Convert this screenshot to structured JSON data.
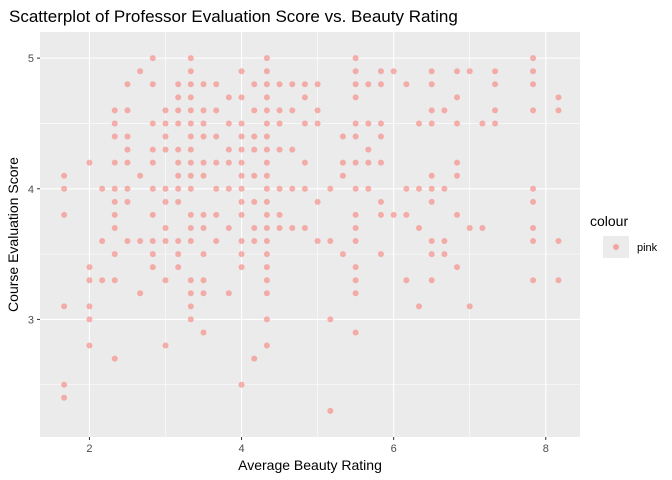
{
  "chart_data": {
    "type": "scatter",
    "title": "Scatterplot of Professor Evaluation Score vs. Beauty Rating",
    "xlabel": "Average Beauty Rating",
    "ylabel": "Course Evaluation Score",
    "xlim": [
      1.35,
      8.45
    ],
    "ylim": [
      2.1,
      5.2
    ],
    "x_ticks": [
      2,
      4,
      6,
      8
    ],
    "y_ticks": [
      3,
      4,
      5
    ],
    "grid": true,
    "legend": {
      "title": "colour",
      "label": "pink",
      "placement": "right"
    },
    "point_color": "#F8766D",
    "points": [
      [
        1.667,
        4.1
      ],
      [
        1.667,
        4.0
      ],
      [
        1.667,
        3.8
      ],
      [
        1.667,
        3.1
      ],
      [
        1.667,
        2.5
      ],
      [
        1.667,
        2.4
      ],
      [
        2.0,
        4.2
      ],
      [
        2.0,
        3.4
      ],
      [
        2.0,
        3.3
      ],
      [
        2.0,
        3.1
      ],
      [
        2.0,
        3.0
      ],
      [
        2.0,
        2.8
      ],
      [
        2.167,
        4.0
      ],
      [
        2.167,
        3.6
      ],
      [
        2.167,
        3.3
      ],
      [
        2.333,
        4.6
      ],
      [
        2.333,
        4.5
      ],
      [
        2.333,
        4.4
      ],
      [
        2.333,
        4.2
      ],
      [
        2.333,
        4.0
      ],
      [
        2.333,
        3.9
      ],
      [
        2.333,
        3.8
      ],
      [
        2.333,
        3.7
      ],
      [
        2.333,
        3.5
      ],
      [
        2.333,
        3.3
      ],
      [
        2.333,
        2.7
      ],
      [
        2.5,
        4.8
      ],
      [
        2.5,
        4.6
      ],
      [
        2.5,
        4.4
      ],
      [
        2.5,
        4.3
      ],
      [
        2.5,
        4.2
      ],
      [
        2.5,
        4.0
      ],
      [
        2.5,
        3.9
      ],
      [
        2.5,
        3.6
      ],
      [
        2.667,
        4.9
      ],
      [
        2.667,
        4.1
      ],
      [
        2.667,
        3.6
      ],
      [
        2.667,
        3.2
      ],
      [
        2.833,
        5.0
      ],
      [
        2.833,
        4.8
      ],
      [
        2.833,
        4.5
      ],
      [
        2.833,
        4.3
      ],
      [
        2.833,
        4.2
      ],
      [
        2.833,
        4.0
      ],
      [
        2.833,
        3.8
      ],
      [
        2.833,
        3.6
      ],
      [
        2.833,
        3.5
      ],
      [
        2.833,
        3.4
      ],
      [
        3.0,
        4.6
      ],
      [
        3.0,
        4.5
      ],
      [
        3.0,
        4.4
      ],
      [
        3.0,
        4.3
      ],
      [
        3.0,
        4.0
      ],
      [
        3.0,
        3.9
      ],
      [
        3.0,
        3.7
      ],
      [
        3.0,
        3.6
      ],
      [
        3.0,
        3.3
      ],
      [
        3.0,
        2.8
      ],
      [
        3.167,
        4.8
      ],
      [
        3.167,
        4.7
      ],
      [
        3.167,
        4.6
      ],
      [
        3.167,
        4.5
      ],
      [
        3.167,
        4.3
      ],
      [
        3.167,
        4.2
      ],
      [
        3.167,
        4.1
      ],
      [
        3.167,
        4.0
      ],
      [
        3.167,
        3.9
      ],
      [
        3.167,
        3.6
      ],
      [
        3.167,
        3.5
      ],
      [
        3.167,
        3.4
      ],
      [
        3.333,
        5.0
      ],
      [
        3.333,
        4.9
      ],
      [
        3.333,
        4.8
      ],
      [
        3.333,
        4.7
      ],
      [
        3.333,
        4.6
      ],
      [
        3.333,
        4.5
      ],
      [
        3.333,
        4.4
      ],
      [
        3.333,
        4.3
      ],
      [
        3.333,
        4.2
      ],
      [
        3.333,
        4.1
      ],
      [
        3.333,
        4.0
      ],
      [
        3.333,
        3.8
      ],
      [
        3.333,
        3.7
      ],
      [
        3.333,
        3.6
      ],
      [
        3.333,
        3.3
      ],
      [
        3.333,
        3.2
      ],
      [
        3.333,
        3.1
      ],
      [
        3.333,
        3.0
      ],
      [
        3.5,
        4.8
      ],
      [
        3.5,
        4.6
      ],
      [
        3.5,
        4.5
      ],
      [
        3.5,
        4.4
      ],
      [
        3.5,
        4.2
      ],
      [
        3.5,
        4.1
      ],
      [
        3.5,
        3.8
      ],
      [
        3.5,
        3.7
      ],
      [
        3.5,
        3.5
      ],
      [
        3.5,
        3.3
      ],
      [
        3.5,
        3.2
      ],
      [
        3.5,
        2.9
      ],
      [
        3.667,
        4.8
      ],
      [
        3.667,
        4.6
      ],
      [
        3.667,
        4.4
      ],
      [
        3.667,
        4.2
      ],
      [
        3.667,
        4.0
      ],
      [
        3.667,
        3.8
      ],
      [
        3.667,
        3.6
      ],
      [
        3.833,
        4.7
      ],
      [
        3.833,
        4.5
      ],
      [
        3.833,
        4.3
      ],
      [
        3.833,
        4.2
      ],
      [
        3.833,
        4.0
      ],
      [
        3.833,
        3.7
      ],
      [
        3.833,
        3.2
      ],
      [
        4.0,
        4.9
      ],
      [
        4.0,
        4.7
      ],
      [
        4.0,
        4.5
      ],
      [
        4.0,
        4.4
      ],
      [
        4.0,
        4.3
      ],
      [
        4.0,
        4.2
      ],
      [
        4.0,
        4.1
      ],
      [
        4.0,
        4.0
      ],
      [
        4.0,
        3.9
      ],
      [
        4.0,
        3.8
      ],
      [
        4.0,
        3.6
      ],
      [
        4.0,
        3.5
      ],
      [
        4.0,
        3.4
      ],
      [
        4.0,
        2.5
      ],
      [
        4.167,
        4.8
      ],
      [
        4.167,
        4.6
      ],
      [
        4.167,
        4.4
      ],
      [
        4.167,
        4.3
      ],
      [
        4.167,
        4.1
      ],
      [
        4.167,
        3.9
      ],
      [
        4.167,
        3.7
      ],
      [
        4.167,
        3.6
      ],
      [
        4.167,
        2.7
      ],
      [
        4.333,
        5.0
      ],
      [
        4.333,
        4.9
      ],
      [
        4.333,
        4.8
      ],
      [
        4.333,
        4.7
      ],
      [
        4.333,
        4.6
      ],
      [
        4.333,
        4.5
      ],
      [
        4.333,
        4.4
      ],
      [
        4.333,
        4.3
      ],
      [
        4.333,
        4.2
      ],
      [
        4.333,
        4.1
      ],
      [
        4.333,
        4.0
      ],
      [
        4.333,
        3.9
      ],
      [
        4.333,
        3.8
      ],
      [
        4.333,
        3.7
      ],
      [
        4.333,
        3.6
      ],
      [
        4.333,
        3.5
      ],
      [
        4.333,
        3.4
      ],
      [
        4.333,
        3.3
      ],
      [
        4.333,
        3.2
      ],
      [
        4.333,
        3.0
      ],
      [
        4.333,
        2.8
      ],
      [
        4.5,
        4.8
      ],
      [
        4.5,
        4.6
      ],
      [
        4.5,
        4.5
      ],
      [
        4.5,
        4.3
      ],
      [
        4.5,
        4.0
      ],
      [
        4.5,
        3.8
      ],
      [
        4.5,
        3.7
      ],
      [
        4.667,
        4.8
      ],
      [
        4.667,
        4.6
      ],
      [
        4.667,
        4.3
      ],
      [
        4.667,
        4.0
      ],
      [
        4.667,
        3.7
      ],
      [
        4.833,
        4.8
      ],
      [
        4.833,
        4.7
      ],
      [
        4.833,
        4.5
      ],
      [
        4.833,
        4.2
      ],
      [
        4.833,
        4.0
      ],
      [
        4.833,
        3.7
      ],
      [
        5.0,
        4.8
      ],
      [
        5.0,
        4.6
      ],
      [
        5.0,
        4.5
      ],
      [
        5.0,
        3.9
      ],
      [
        5.0,
        3.6
      ],
      [
        5.167,
        4.0
      ],
      [
        5.167,
        3.6
      ],
      [
        5.167,
        3.0
      ],
      [
        5.167,
        2.3
      ],
      [
        5.333,
        4.4
      ],
      [
        5.333,
        4.2
      ],
      [
        5.333,
        4.1
      ],
      [
        5.333,
        3.5
      ],
      [
        5.5,
        5.0
      ],
      [
        5.5,
        4.9
      ],
      [
        5.5,
        4.8
      ],
      [
        5.5,
        4.7
      ],
      [
        5.5,
        4.5
      ],
      [
        5.5,
        4.4
      ],
      [
        5.5,
        4.2
      ],
      [
        5.5,
        4.0
      ],
      [
        5.5,
        3.8
      ],
      [
        5.5,
        3.7
      ],
      [
        5.5,
        3.6
      ],
      [
        5.5,
        3.4
      ],
      [
        5.5,
        3.3
      ],
      [
        5.5,
        3.2
      ],
      [
        5.5,
        2.9
      ],
      [
        5.667,
        4.8
      ],
      [
        5.667,
        4.5
      ],
      [
        5.667,
        4.3
      ],
      [
        5.667,
        4.2
      ],
      [
        5.667,
        4.0
      ],
      [
        5.833,
        4.9
      ],
      [
        5.833,
        4.8
      ],
      [
        5.833,
        4.5
      ],
      [
        5.833,
        4.4
      ],
      [
        5.833,
        4.2
      ],
      [
        5.833,
        3.9
      ],
      [
        5.833,
        3.8
      ],
      [
        5.833,
        3.5
      ],
      [
        6.0,
        4.9
      ],
      [
        6.0,
        3.8
      ],
      [
        6.167,
        4.8
      ],
      [
        6.167,
        4.0
      ],
      [
        6.167,
        3.8
      ],
      [
        6.167,
        3.3
      ],
      [
        6.333,
        4.5
      ],
      [
        6.333,
        4.0
      ],
      [
        6.333,
        3.7
      ],
      [
        6.333,
        3.1
      ],
      [
        6.5,
        4.9
      ],
      [
        6.5,
        4.8
      ],
      [
        6.5,
        4.6
      ],
      [
        6.5,
        4.5
      ],
      [
        6.5,
        4.1
      ],
      [
        6.5,
        4.0
      ],
      [
        6.5,
        3.9
      ],
      [
        6.5,
        3.6
      ],
      [
        6.5,
        3.5
      ],
      [
        6.5,
        3.3
      ],
      [
        6.667,
        4.6
      ],
      [
        6.667,
        4.0
      ],
      [
        6.667,
        3.6
      ],
      [
        6.667,
        3.5
      ],
      [
        6.833,
        4.9
      ],
      [
        6.833,
        4.7
      ],
      [
        6.833,
        4.5
      ],
      [
        6.833,
        4.2
      ],
      [
        6.833,
        4.1
      ],
      [
        6.833,
        3.8
      ],
      [
        6.833,
        3.4
      ],
      [
        7.0,
        4.9
      ],
      [
        7.0,
        3.7
      ],
      [
        7.0,
        3.1
      ],
      [
        7.167,
        4.5
      ],
      [
        7.167,
        3.7
      ],
      [
        7.333,
        4.9
      ],
      [
        7.333,
        4.8
      ],
      [
        7.333,
        4.6
      ],
      [
        7.333,
        4.5
      ],
      [
        7.833,
        5.0
      ],
      [
        7.833,
        4.9
      ],
      [
        7.833,
        4.8
      ],
      [
        7.833,
        4.6
      ],
      [
        7.833,
        4.0
      ],
      [
        7.833,
        3.9
      ],
      [
        7.833,
        3.7
      ],
      [
        7.833,
        3.6
      ],
      [
        7.833,
        3.3
      ],
      [
        8.167,
        4.7
      ],
      [
        8.167,
        4.6
      ],
      [
        8.167,
        3.6
      ],
      [
        8.167,
        3.3
      ]
    ]
  }
}
